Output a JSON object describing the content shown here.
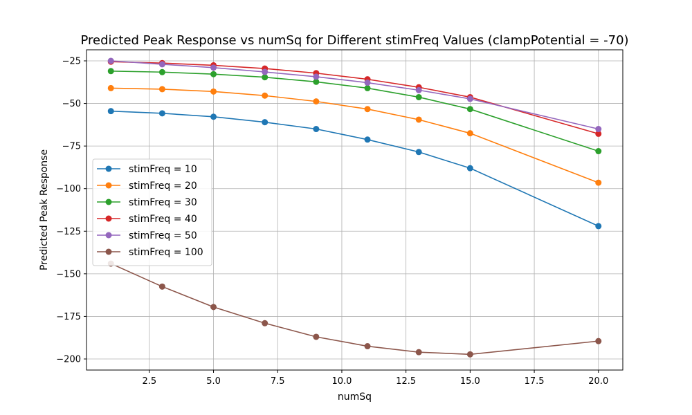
{
  "chart_data": {
    "type": "line",
    "title": "Predicted Peak Response vs numSq for Different stimFreq Values (clampPotential = -70)",
    "xlabel": "numSq",
    "ylabel": "Predicted Peak Response",
    "xlim": [
      0.05,
      20.95
    ],
    "ylim": [
      -206.5,
      -18.5
    ],
    "xticks": [
      2.5,
      5.0,
      7.5,
      10.0,
      12.5,
      15.0,
      17.5,
      20.0
    ],
    "xtick_labels": [
      "2.5",
      "5.0",
      "7.5",
      "10.0",
      "12.5",
      "15.0",
      "17.5",
      "20.0"
    ],
    "yticks": [
      -200,
      -175,
      -150,
      -125,
      -100,
      -75,
      -50,
      -25
    ],
    "ytick_labels": [
      "−200",
      "−175",
      "−150",
      "−125",
      "−100",
      "−75",
      "−50",
      "−25"
    ],
    "grid": true,
    "legend_position": "center-left",
    "x": [
      1,
      3,
      5,
      7,
      9,
      11,
      13,
      15,
      20
    ],
    "series": [
      {
        "name": "stimFreq = 10",
        "color": "#1f77b4",
        "values": [
          -54.5,
          -55.8,
          -57.8,
          -61.0,
          -65.0,
          -71.2,
          -78.5,
          -88.0,
          -122.0
        ]
      },
      {
        "name": "stimFreq = 20",
        "color": "#ff7f0e",
        "values": [
          -41.0,
          -41.6,
          -43.0,
          -45.4,
          -48.8,
          -53.3,
          -59.5,
          -67.5,
          -96.5
        ]
      },
      {
        "name": "stimFreq = 30",
        "color": "#2ca02c",
        "values": [
          -31.0,
          -31.6,
          -32.8,
          -34.6,
          -37.3,
          -41.0,
          -46.3,
          -53.3,
          -78.0
        ]
      },
      {
        "name": "stimFreq = 40",
        "color": "#d62728",
        "values": [
          -25.5,
          -26.3,
          -27.6,
          -29.5,
          -32.2,
          -35.8,
          -40.5,
          -46.3,
          -67.8
        ]
      },
      {
        "name": "stimFreq = 50",
        "color": "#9467bd",
        "values": [
          -25.0,
          -27.0,
          -29.0,
          -31.5,
          -34.3,
          -37.8,
          -42.2,
          -47.3,
          -65.0
        ]
      },
      {
        "name": "stimFreq = 100",
        "color": "#8c564b",
        "values": [
          -144.0,
          -157.5,
          -169.5,
          -179.0,
          -187.0,
          -192.5,
          -196.0,
          -197.3,
          -189.5
        ]
      }
    ]
  }
}
